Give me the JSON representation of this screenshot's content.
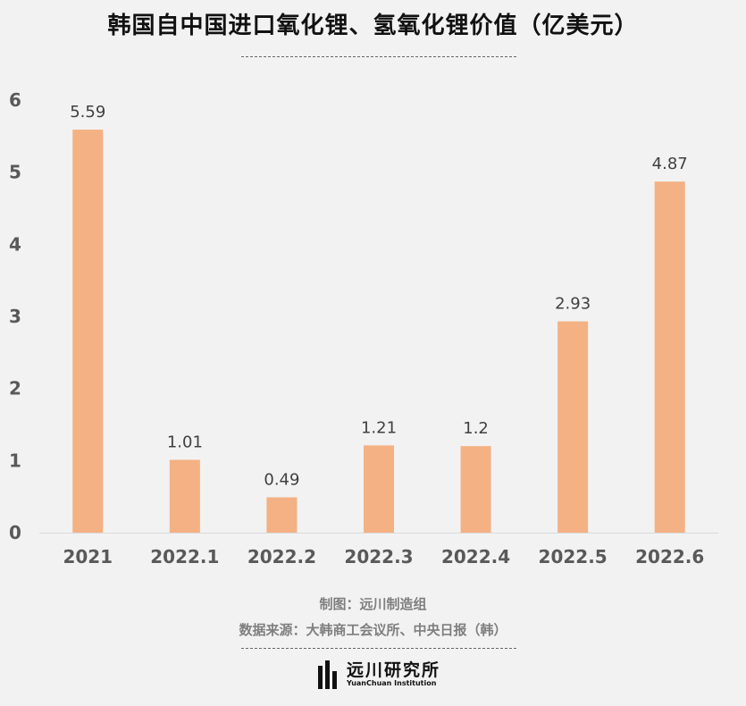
{
  "chart_data": {
    "type": "bar",
    "title": "韩国自中国进口氧化锂、氢氧化锂价值（亿美元）",
    "categories": [
      "2021",
      "2022.1",
      "2022.2",
      "2022.3",
      "2022.4",
      "2022.5",
      "2022.6"
    ],
    "values": [
      5.59,
      1.01,
      0.49,
      1.21,
      1.2,
      2.93,
      4.87
    ],
    "value_labels": [
      "5.59",
      "1.01",
      "0.49",
      "1.21",
      "1.2",
      "2.93",
      "4.87"
    ],
    "xlabel": "",
    "ylabel": "",
    "ylim": [
      0,
      6
    ],
    "yticks": [
      "0",
      "1",
      "2",
      "3",
      "4",
      "5",
      "6"
    ],
    "grid": false,
    "bar_color": "#f4b183"
  },
  "footer": {
    "credit": "制图：远川制造组",
    "source": "数据来源：大韩商工会议所、中央日报（韩）"
  },
  "logo": {
    "name_cn": "远川研究所",
    "name_en": "YuanChuan Institution"
  }
}
